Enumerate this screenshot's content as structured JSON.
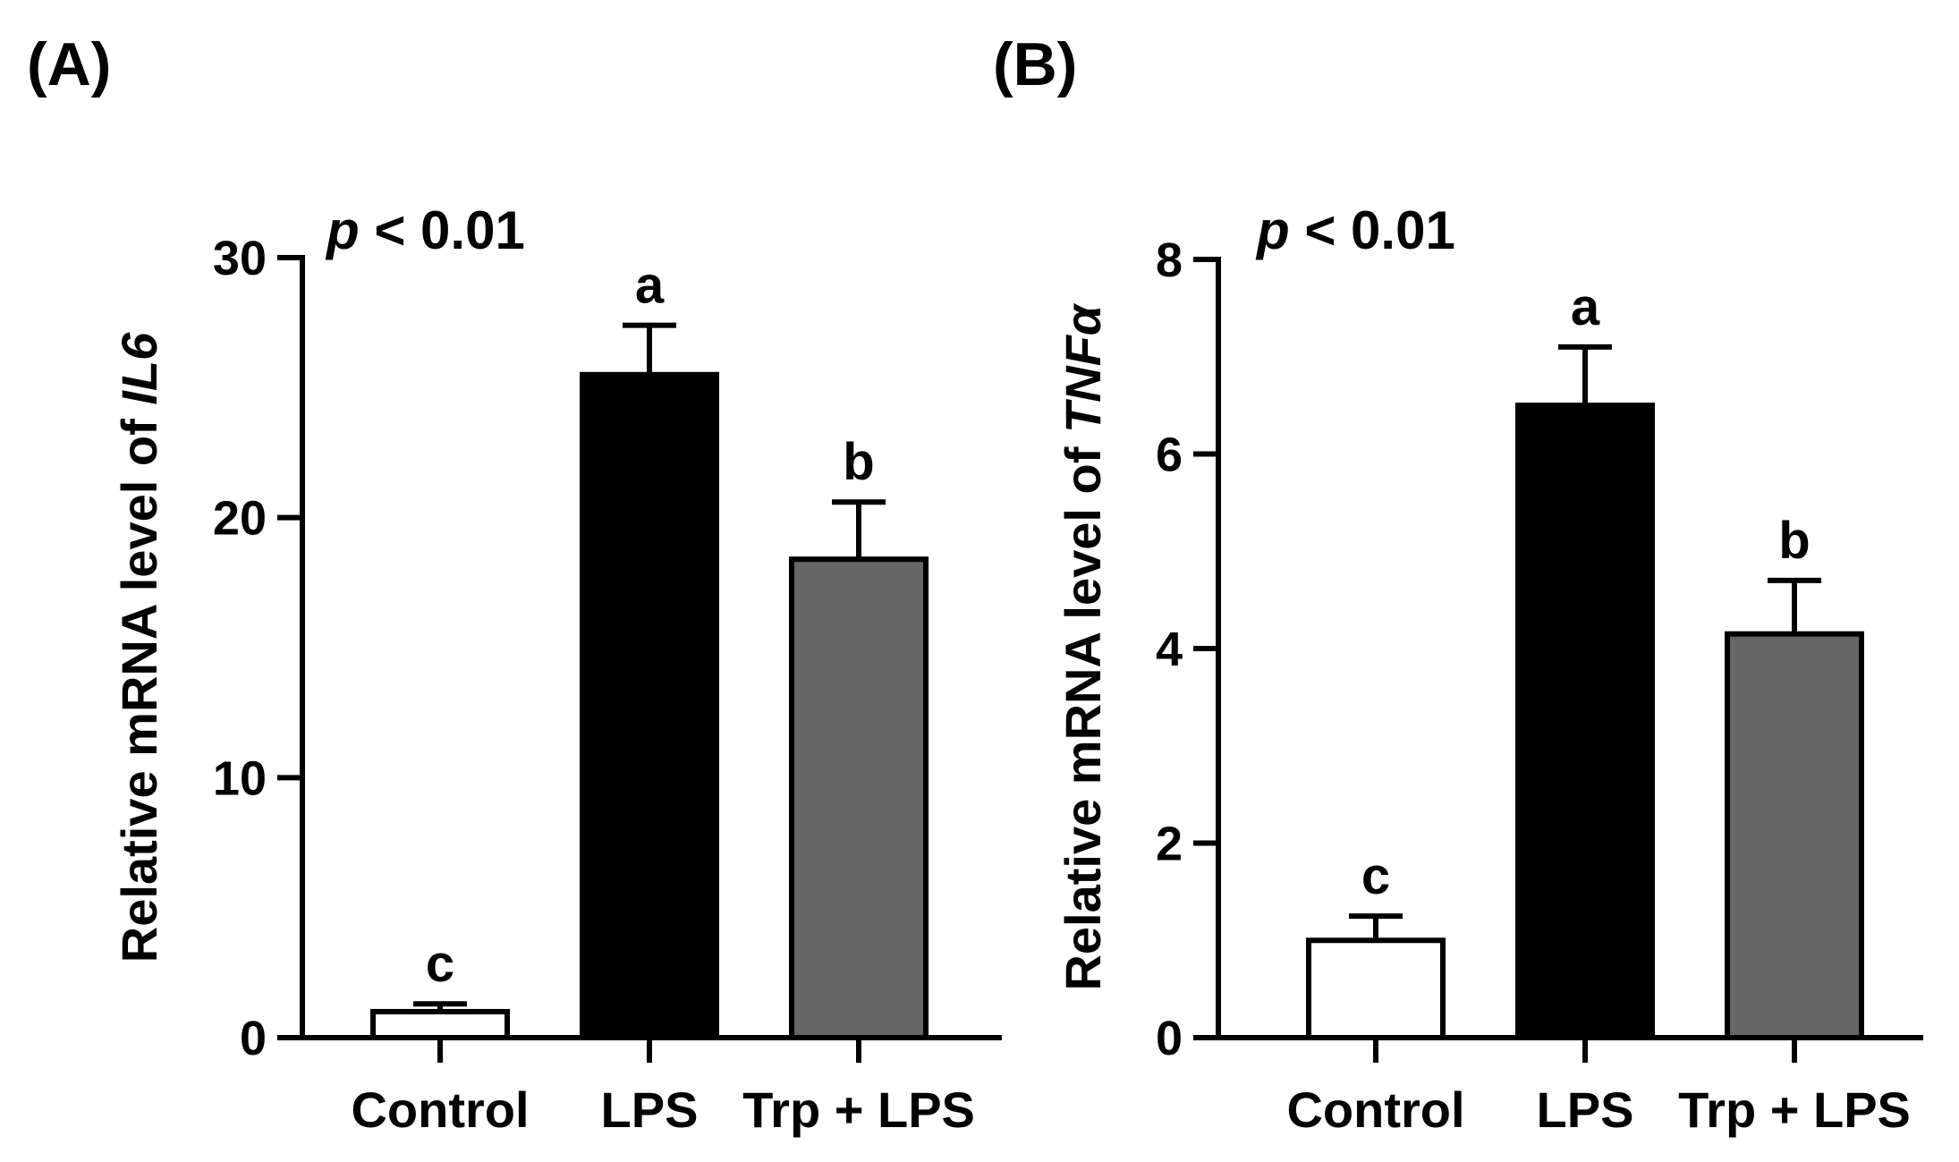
{
  "chart_data": [
    {
      "type": "bar",
      "panel_label": "(A)",
      "categories": [
        "Control",
        "LPS",
        "Trp + LPS"
      ],
      "values": [
        1.0,
        25.5,
        18.4
      ],
      "errors": [
        0.3,
        1.9,
        2.2
      ],
      "colors": [
        "#ffffff",
        "#000000",
        "#666666"
      ],
      "significance_letters": [
        "c",
        "a",
        "b"
      ],
      "ylabel_prefix": "Relative mRNA level of ",
      "ylabel_gene": "IL6",
      "p_italic": "p",
      "p_rest": " < 0.01",
      "ylim": [
        0,
        30
      ],
      "yticks": [
        0,
        10,
        20,
        30
      ],
      "ytick_labels": [
        "0",
        "10",
        "20",
        "30"
      ]
    },
    {
      "type": "bar",
      "panel_label": "(B)",
      "categories": [
        "Control",
        "LPS",
        "Trp + LPS"
      ],
      "values": [
        1.0,
        6.5,
        4.15
      ],
      "errors": [
        0.25,
        0.6,
        0.55
      ],
      "colors": [
        "#ffffff",
        "#000000",
        "#666666"
      ],
      "significance_letters": [
        "c",
        "a",
        "b"
      ],
      "ylabel_prefix": "Relative mRNA level of ",
      "ylabel_gene": "TNFα",
      "p_italic": "p",
      "p_rest": " < 0.01",
      "ylim": [
        0,
        8
      ],
      "yticks": [
        0,
        2,
        4,
        6,
        8
      ],
      "ytick_labels": [
        "0",
        "2",
        "4",
        "6",
        "8"
      ]
    }
  ]
}
